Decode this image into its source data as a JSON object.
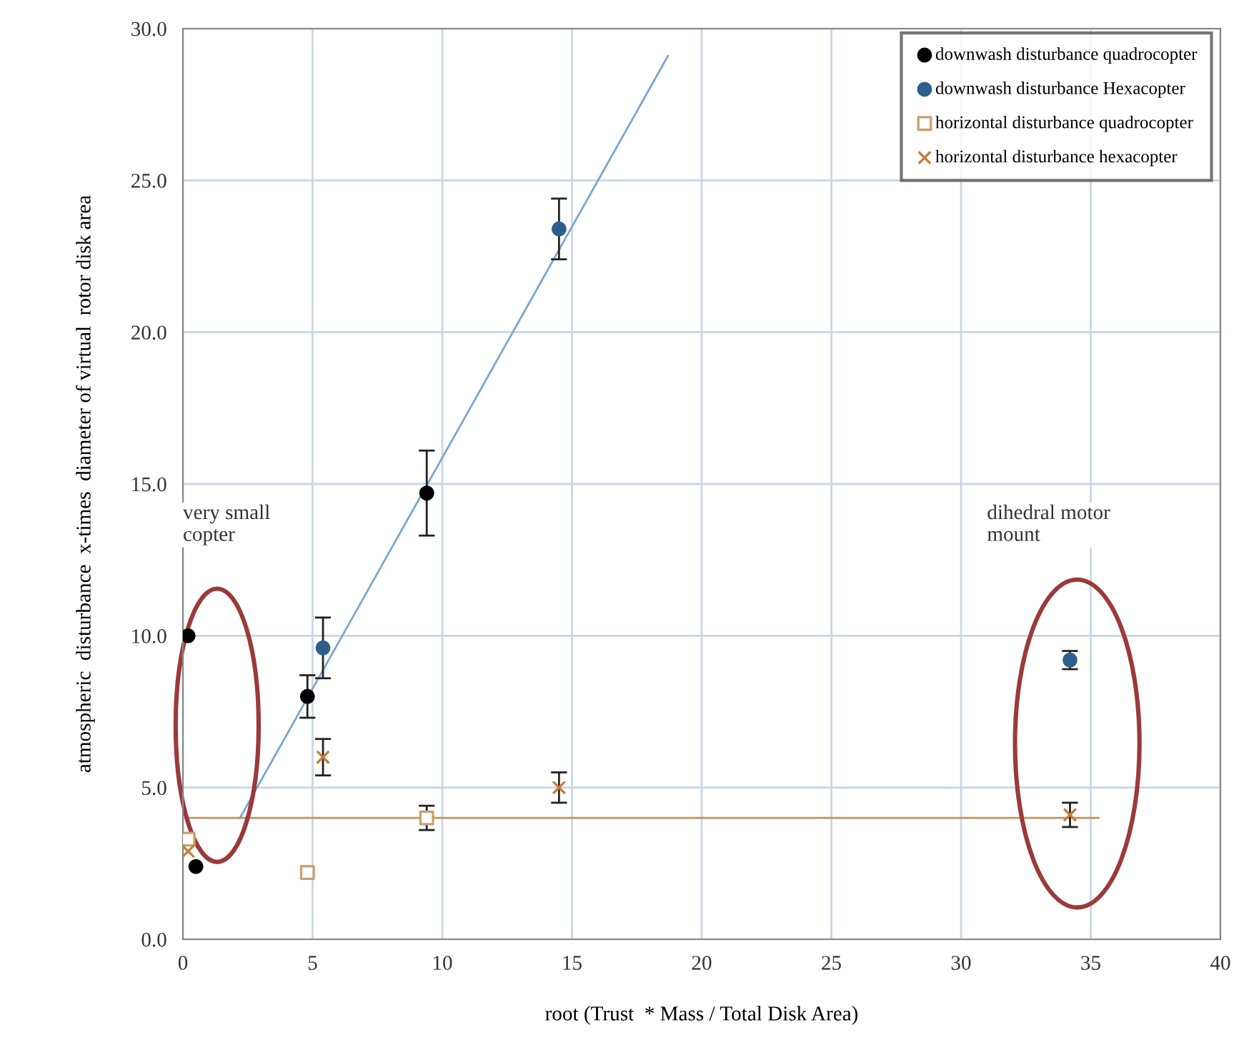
{
  "chart_data": {
    "type": "scatter",
    "xlabel": "root (Trust  * Mass / Total Disk Area)",
    "ylabel": "atmospheric  disturbance  x-times  diameter of virtual  rotor disk area",
    "xlim": [
      0,
      40
    ],
    "ylim": [
      0,
      30
    ],
    "xticks": [
      0,
      5,
      10,
      15,
      20,
      25,
      30,
      35,
      40
    ],
    "yticks": [
      {
        "value": 0,
        "label": "0.0"
      },
      {
        "value": 5,
        "label": "5.0"
      },
      {
        "value": 10,
        "label": "10.0"
      },
      {
        "value": 15,
        "label": "15.0"
      },
      {
        "value": 20,
        "label": "20.0"
      },
      {
        "value": 25,
        "label": "25.0"
      },
      {
        "value": 30,
        "label": "30.0"
      }
    ],
    "grid": true,
    "legend": "top right",
    "series": [
      {
        "name": "downwash disturbance quadrocopter",
        "color": "#000000",
        "marker": "circle",
        "x": [
          0.2,
          0.5,
          4.8,
          9.4
        ],
        "values": [
          10.0,
          2.4,
          8.0,
          14.7
        ],
        "errors": [
          null,
          null,
          0.7,
          1.4
        ]
      },
      {
        "name": "downwash disturbance Hexacopter",
        "color": "#2e5f8a",
        "marker": "circle",
        "x": [
          5.4,
          14.5,
          34.2
        ],
        "values": [
          9.6,
          23.4,
          9.2
        ],
        "errors": [
          1.0,
          1.0,
          0.3
        ]
      },
      {
        "name": "horizontal disturbance quadrocopter",
        "color": "#c8a070",
        "marker": "square",
        "x": [
          0.2,
          4.8,
          9.4
        ],
        "values": [
          3.3,
          2.2,
          4.0
        ],
        "errors": [
          null,
          null,
          0.4
        ]
      },
      {
        "name": "horizontal disturbance hexacopter",
        "color": "#c08040",
        "marker": "cross",
        "x": [
          0.2,
          5.4,
          14.5,
          34.2
        ],
        "values": [
          2.9,
          6.0,
          5.0,
          4.1
        ],
        "errors": [
          null,
          0.6,
          0.5,
          0.4
        ]
      },
      {
        "type": "line",
        "color": "#7aa6d0",
        "x": [
          2.2,
          18.7
        ],
        "values": [
          4.0,
          29.1
        ]
      },
      {
        "type": "line",
        "color": "#c0935a",
        "x": [
          0.1,
          35.3
        ],
        "values": [
          4.0,
          4.0
        ]
      }
    ],
    "annotations": [
      "very small\ncopter",
      "dihedral motor\nmount"
    ]
  }
}
